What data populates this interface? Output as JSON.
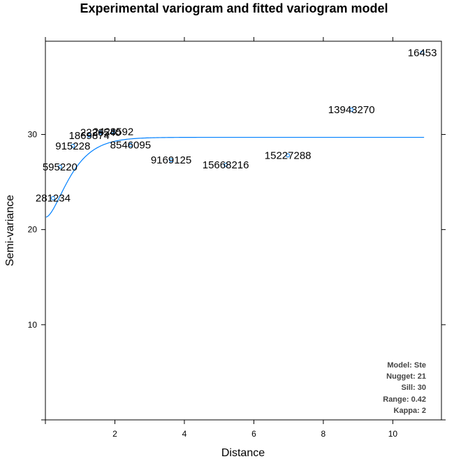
{
  "chart_data": {
    "type": "scatter",
    "title": "Experimental variogram and fitted variogram model",
    "xlabel": "Distance",
    "ylabel": "Semi-variance",
    "xlim": [
      0,
      11.4
    ],
    "ylim": [
      0,
      39.8
    ],
    "xticks": [
      2,
      4,
      6,
      8,
      10
    ],
    "yticks": [
      10,
      20,
      30
    ],
    "grid": false,
    "point_color": "#0080ff",
    "line_color": "#0080ff",
    "series": [
      {
        "type": "scatter",
        "x": [
          0.22,
          0.42,
          0.79,
          1.26,
          1.59,
          1.95,
          2.45,
          3.62,
          5.19,
          6.98,
          8.81,
          10.85
        ],
        "y": [
          23.3,
          26.6,
          28.8,
          29.9,
          30.2,
          30.3,
          28.9,
          27.3,
          26.8,
          27.8,
          32.6,
          38.6
        ],
        "labels": [
          "281234",
          "595220",
          "915228",
          "1869874",
          "2226540",
          "2428592",
          "8546095",
          "9169125",
          "15668216",
          "15227288",
          "13943270",
          "16453"
        ]
      },
      {
        "type": "line",
        "model": "Ste",
        "nugget": 21.3,
        "sill": 29.7,
        "range": 0.42,
        "kappa": 2,
        "x_start": 0.02,
        "x_end": 10.9
      }
    ],
    "annotations": [
      "Model: Ste",
      "Nugget: 21",
      "Sill: 30",
      "Range: 0.42",
      "Kappa: 2"
    ]
  }
}
